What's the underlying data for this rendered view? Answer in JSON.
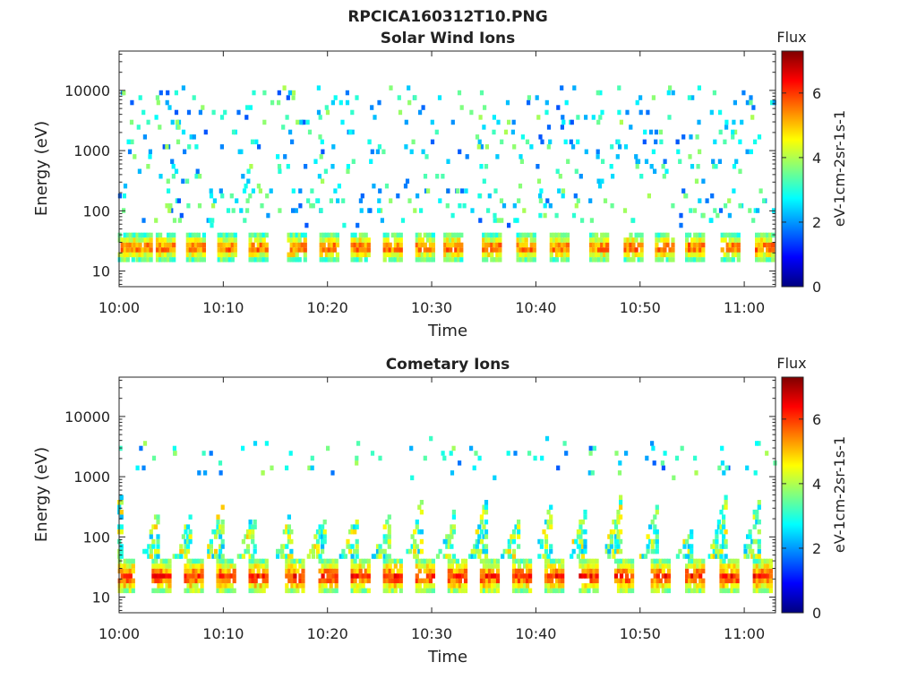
{
  "figure_title": "RPCICA160312T10.PNG",
  "chart_data": [
    {
      "type": "heatmap",
      "title": "Solar Wind Ions",
      "xlabel": "Time",
      "ylabel": "Energy (eV)",
      "y_scale": "log",
      "ylim": [
        5.5,
        45000
      ],
      "x_range_min": [
        0,
        63
      ],
      "x_ticks": [
        "10:00",
        "10:10",
        "10:20",
        "10:30",
        "10:40",
        "10:50",
        "11:00"
      ],
      "y_ticks": [
        "10",
        "100",
        "1000",
        "10000"
      ],
      "colorbar": {
        "title": "Flux",
        "label": "eV-1cm-2sr-1s-1",
        "range": [
          0,
          7.3
        ],
        "ticks": [
          "0",
          "2",
          "4",
          "6"
        ]
      },
      "band_energy_eV": [
        15,
        40
      ],
      "scan_times_min": [
        0.1,
        1.8,
        4.0,
        6.9,
        9.9,
        12.9,
        16.6,
        19.7,
        22.7,
        25.8,
        28.9,
        31.6,
        35.3,
        38.6,
        41.8,
        45.6,
        48.9,
        51.9,
        54.8,
        58.2,
        61.5
      ],
      "peak_flux": 6.5,
      "sparse_flux_range": [
        2,
        4.5
      ],
      "energy_range_sparse_eV": [
        6,
        15000
      ]
    },
    {
      "type": "heatmap",
      "title": "Cometary Ions",
      "xlabel": "Time",
      "ylabel": "Energy (eV)",
      "y_scale": "log",
      "ylim": [
        5.5,
        45000
      ],
      "x_range_min": [
        0,
        63
      ],
      "x_ticks": [
        "10:00",
        "10:10",
        "10:20",
        "10:30",
        "10:40",
        "10:50",
        "11:00"
      ],
      "y_ticks": [
        "10",
        "100",
        "1000",
        "10000"
      ],
      "colorbar": {
        "title": "Flux",
        "label": "eV-1cm-2sr-1s-1",
        "range": [
          0,
          7.3
        ],
        "ticks": [
          "0",
          "2",
          "4",
          "6"
        ]
      },
      "band_energy_eV": [
        12,
        40
      ],
      "scan_times_min": [
        0.1,
        3.6,
        6.7,
        9.8,
        12.9,
        16.4,
        19.6,
        22.7,
        25.8,
        28.9,
        32.0,
        35.1,
        38.2,
        41.3,
        44.6,
        48.0,
        51.5,
        54.8,
        58.1,
        61.3
      ],
      "peak_flux": 6.8,
      "plume_top_eV": [
        120,
        600
      ],
      "sparse_flux_range": [
        2,
        4.5
      ]
    }
  ]
}
